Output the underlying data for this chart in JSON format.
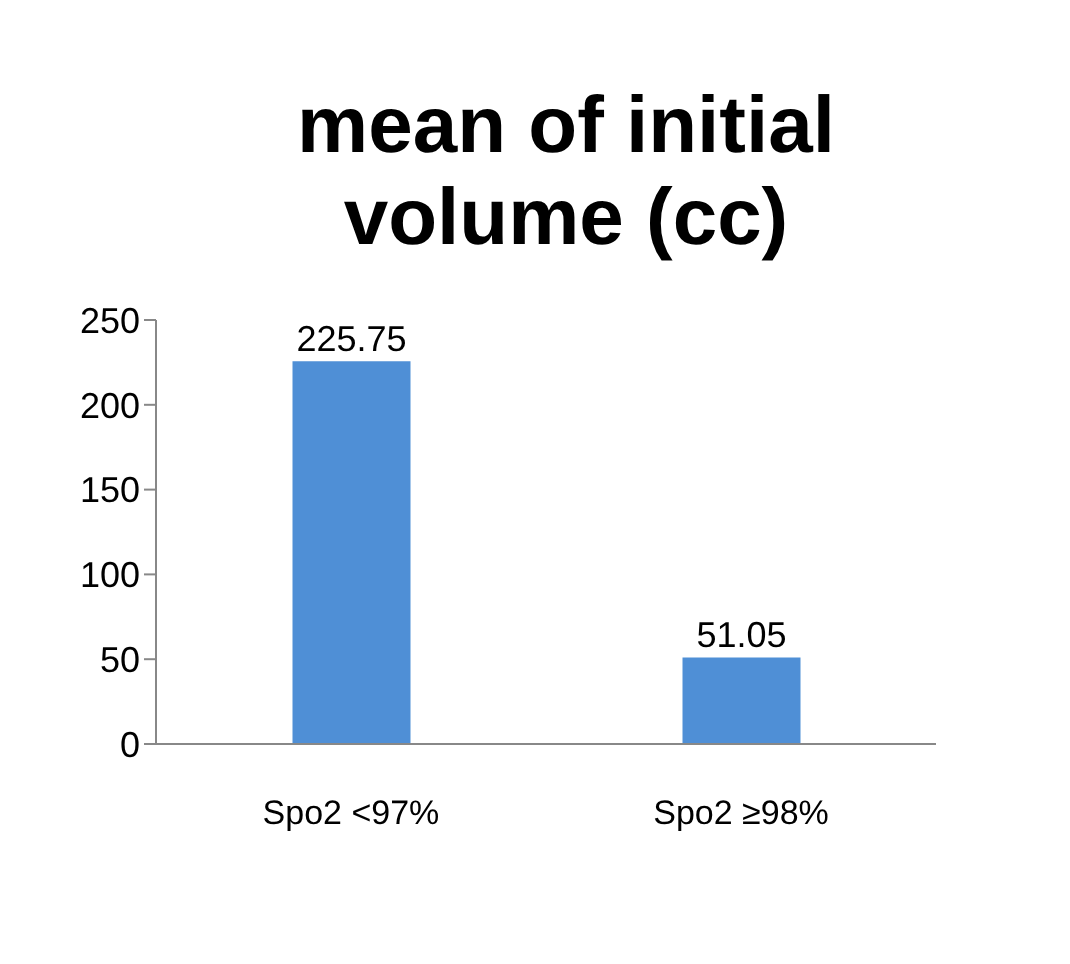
{
  "chart_data": {
    "type": "bar",
    "title": "mean of initial volume (cc)",
    "categories": [
      "Spo2 <97%",
      "Spo2 ≥98%"
    ],
    "values": [
      225.75,
      51.05
    ],
    "color": "#4f8fd6",
    "ylim": [
      0,
      250
    ],
    "yticks": [
      0,
      50,
      100,
      150,
      200,
      250
    ],
    "grid": false,
    "data_labels": true
  }
}
